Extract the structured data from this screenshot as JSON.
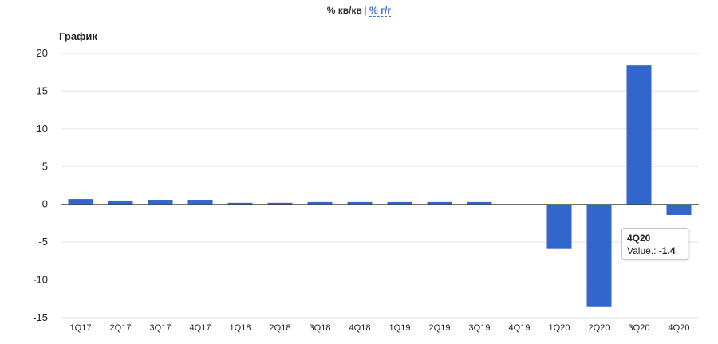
{
  "toggle": {
    "active_label": "% кв/кв",
    "separator": "|",
    "link_label": "% г/г"
  },
  "chart_label": "График",
  "chart_data": {
    "type": "bar",
    "title": "График",
    "xlabel": "",
    "ylabel": "",
    "categories": [
      "1Q17",
      "2Q17",
      "3Q17",
      "4Q17",
      "1Q18",
      "2Q18",
      "3Q18",
      "4Q18",
      "1Q19",
      "2Q19",
      "3Q19",
      "4Q19",
      "1Q20",
      "2Q20",
      "3Q20",
      "4Q20"
    ],
    "values": [
      0.7,
      0.5,
      0.6,
      0.6,
      0.2,
      0.2,
      0.3,
      0.3,
      0.3,
      0.3,
      0.3,
      0.0,
      -5.9,
      -13.5,
      18.4,
      -1.4
    ],
    "ylim": [
      -15,
      20
    ],
    "yticks": [
      "20",
      "15",
      "10",
      "5",
      "0",
      "-5",
      "-10",
      "-15"
    ],
    "ytick_values": [
      20,
      15,
      10,
      5,
      0,
      -5,
      -10,
      -15
    ],
    "grid": true,
    "bar_color": "#3366cc",
    "legend": "none"
  },
  "tooltip": {
    "category": "4Q20",
    "value_label": "Value.:",
    "value": "-1.4"
  }
}
